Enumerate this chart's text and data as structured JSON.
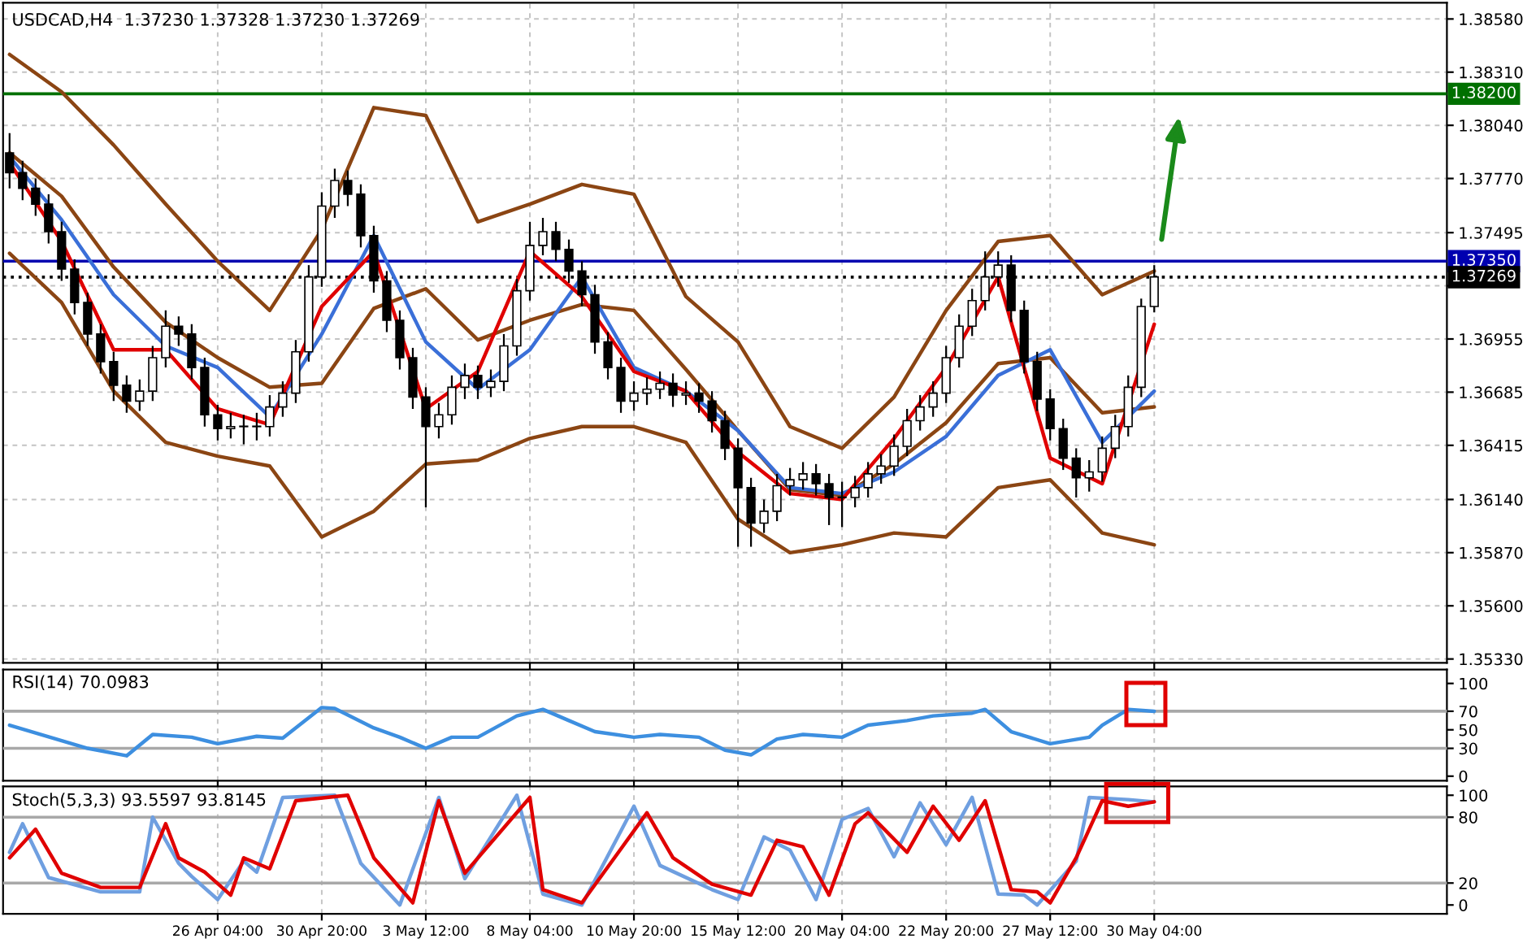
{
  "chart_data": [
    {
      "type": "candlestick",
      "title": "USDCAD,H4  1.37230 1.37328 1.37230 1.37269",
      "tick_labels": "y",
      "grid": true,
      "categories": [
        null,
        null,
        null,
        null,
        null,
        null,
        null,
        null,
        null,
        null,
        null,
        null,
        null,
        null,
        null,
        null,
        null,
        null,
        null,
        null,
        null,
        null,
        null,
        null,
        null,
        null,
        null,
        null,
        null,
        null,
        null,
        null,
        null,
        null,
        null,
        null,
        null,
        null,
        null,
        null,
        null,
        null,
        null,
        null,
        null,
        null,
        null,
        null,
        null,
        null,
        null,
        null,
        null,
        null,
        null,
        null,
        null,
        null,
        null,
        null,
        null,
        null,
        null,
        null,
        null,
        null,
        null,
        null,
        null,
        null,
        null,
        null,
        null,
        null,
        null,
        null,
        null,
        null,
        null,
        null,
        null,
        null,
        null,
        null,
        null,
        null,
        null,
        null,
        null,
        null,
        null,
        null,
        null,
        null,
        null,
        null,
        null,
        null,
        null,
        null,
        null,
        null,
        null,
        null,
        null,
        null,
        null,
        null,
        null,
        null,
        null
      ],
      "ohlc": [
        [
          1.379,
          1.38,
          1.3772,
          1.378
        ],
        [
          1.378,
          1.3786,
          1.3766,
          1.3772
        ],
        [
          1.3772,
          1.3777,
          1.3758,
          1.3764
        ],
        [
          1.3764,
          1.3769,
          1.3744,
          1.375
        ],
        [
          1.375,
          1.3755,
          1.3725,
          1.3731
        ],
        [
          1.3731,
          1.3736,
          1.3708,
          1.3714
        ],
        [
          1.3714,
          1.3719,
          1.3692,
          1.3698
        ],
        [
          1.3698,
          1.3703,
          1.3678,
          1.3684
        ],
        [
          1.3684,
          1.3689,
          1.3664,
          1.3672
        ],
        [
          1.3672,
          1.3677,
          1.3658,
          1.3664
        ],
        [
          1.3664,
          1.3675,
          1.3659,
          1.3669
        ],
        [
          1.3669,
          1.3692,
          1.3664,
          1.3686
        ],
        [
          1.3686,
          1.371,
          1.3681,
          1.3702
        ],
        [
          1.3702,
          1.3707,
          1.3692,
          1.3698
        ],
        [
          1.3698,
          1.3703,
          1.3675,
          1.3681
        ],
        [
          1.3681,
          1.3686,
          1.3651,
          1.3657
        ],
        [
          1.3657,
          1.3662,
          1.3644,
          1.365
        ],
        [
          1.365,
          1.3658,
          1.3645,
          1.3651
        ],
        [
          1.3651,
          1.3657,
          1.3642,
          1.3651
        ],
        [
          1.3651,
          1.3658,
          1.3644,
          1.3651
        ],
        [
          1.3651,
          1.3667,
          1.3646,
          1.3661
        ],
        [
          1.3661,
          1.3674,
          1.3656,
          1.3668
        ],
        [
          1.3668,
          1.3695,
          1.3663,
          1.3689
        ],
        [
          1.3689,
          1.3733,
          1.3684,
          1.3727
        ],
        [
          1.3727,
          1.377,
          1.3722,
          1.3763
        ],
        [
          1.3763,
          1.3782,
          1.3757,
          1.3776
        ],
        [
          1.3776,
          1.3781,
          1.3763,
          1.3769
        ],
        [
          1.3769,
          1.3774,
          1.3742,
          1.3748
        ],
        [
          1.3748,
          1.3753,
          1.3719,
          1.3725
        ],
        [
          1.3725,
          1.373,
          1.3699,
          1.3705
        ],
        [
          1.3705,
          1.371,
          1.368,
          1.3686
        ],
        [
          1.3686,
          1.3691,
          1.366,
          1.3666
        ],
        [
          1.3666,
          1.3671,
          1.361,
          1.3651
        ],
        [
          1.3651,
          1.3663,
          1.3645,
          1.3657
        ],
        [
          1.3657,
          1.3677,
          1.3652,
          1.3671
        ],
        [
          1.3671,
          1.3683,
          1.3665,
          1.3677
        ],
        [
          1.3677,
          1.3682,
          1.3665,
          1.3671
        ],
        [
          1.3671,
          1.368,
          1.3666,
          1.3674
        ],
        [
          1.3674,
          1.3698,
          1.3669,
          1.3692
        ],
        [
          1.3692,
          1.3726,
          1.3687,
          1.372
        ],
        [
          1.372,
          1.3755,
          1.3715,
          1.3743
        ],
        [
          1.3743,
          1.3757,
          1.3738,
          1.375
        ],
        [
          1.375,
          1.3755,
          1.3735,
          1.3741
        ],
        [
          1.3741,
          1.3746,
          1.3724,
          1.373
        ],
        [
          1.373,
          1.3735,
          1.3712,
          1.3718
        ],
        [
          1.3718,
          1.3723,
          1.3688,
          1.3694
        ],
        [
          1.3694,
          1.3699,
          1.3675,
          1.3681
        ],
        [
          1.3681,
          1.3686,
          1.3658,
          1.3664
        ],
        [
          1.3664,
          1.3674,
          1.3659,
          1.3668
        ],
        [
          1.3668,
          1.3676,
          1.3662,
          1.367
        ],
        [
          1.367,
          1.3679,
          1.3665,
          1.3673
        ],
        [
          1.3673,
          1.3678,
          1.3661,
          1.3667
        ],
        [
          1.3667,
          1.3674,
          1.3662,
          1.3668
        ],
        [
          1.3668,
          1.3673,
          1.3658,
          1.3664
        ],
        [
          1.3664,
          1.3669,
          1.3648,
          1.3654
        ],
        [
          1.3654,
          1.3659,
          1.3634,
          1.364
        ],
        [
          1.364,
          1.3645,
          1.359,
          1.362
        ],
        [
          1.362,
          1.3625,
          1.359,
          1.3602
        ],
        [
          1.3602,
          1.3614,
          1.3597,
          1.3608
        ],
        [
          1.3608,
          1.3627,
          1.3603,
          1.3621
        ],
        [
          1.3621,
          1.363,
          1.3616,
          1.3624
        ],
        [
          1.3624,
          1.3633,
          1.3619,
          1.3627
        ],
        [
          1.3627,
          1.3632,
          1.3616,
          1.3622
        ],
        [
          1.3622,
          1.3627,
          1.3601,
          1.3615
        ],
        [
          1.3615,
          1.3623,
          1.36,
          1.3615
        ],
        [
          1.3615,
          1.3626,
          1.361,
          1.362
        ],
        [
          1.362,
          1.3633,
          1.3615,
          1.3627
        ],
        [
          1.3627,
          1.3637,
          1.3622,
          1.3631
        ],
        [
          1.3631,
          1.3647,
          1.3626,
          1.3641
        ],
        [
          1.3641,
          1.366,
          1.3636,
          1.3654
        ],
        [
          1.3654,
          1.3667,
          1.3649,
          1.3661
        ],
        [
          1.3661,
          1.3674,
          1.3656,
          1.3668
        ],
        [
          1.3668,
          1.3692,
          1.3663,
          1.3686
        ],
        [
          1.3686,
          1.3708,
          1.3681,
          1.3702
        ],
        [
          1.3702,
          1.3721,
          1.3697,
          1.3715
        ],
        [
          1.3715,
          1.374,
          1.371,
          1.3727
        ],
        [
          1.3727,
          1.374,
          1.3722,
          1.3733
        ],
        [
          1.3733,
          1.3738,
          1.3704,
          1.371
        ],
        [
          1.371,
          1.3715,
          1.3678,
          1.3684
        ],
        [
          1.3684,
          1.3689,
          1.3659,
          1.3665
        ],
        [
          1.3665,
          1.367,
          1.3644,
          1.365
        ],
        [
          1.365,
          1.3655,
          1.3629,
          1.3635
        ],
        [
          1.3635,
          1.364,
          1.3615,
          1.3625
        ],
        [
          1.3625,
          1.3634,
          1.3618,
          1.3628
        ],
        [
          1.3628,
          1.3646,
          1.3623,
          1.364
        ],
        [
          1.364,
          1.3657,
          1.3635,
          1.3651
        ],
        [
          1.3651,
          1.3677,
          1.3646,
          1.3671
        ],
        [
          1.3671,
          1.3716,
          1.3666,
          1.3712
        ],
        [
          1.3712,
          1.3733,
          1.3709,
          1.3727
        ],
        null,
        null,
        null,
        null,
        null,
        null,
        null,
        null,
        null,
        null,
        null,
        null,
        null,
        null,
        null,
        null,
        null,
        null,
        null,
        null,
        null,
        null
      ],
      "series": [
        {
          "type": "line",
          "color": "#8b4513",
          "values": [
            1.384,
            null,
            null,
            null,
            1.3821,
            null,
            null,
            null,
            1.3794,
            null,
            null,
            null,
            1.3764,
            null,
            null,
            null,
            1.3735,
            null,
            null,
            null,
            1.371,
            null,
            null,
            null,
            1.3751,
            null,
            null,
            null,
            1.3813,
            null,
            null,
            null,
            1.3809,
            null,
            null,
            null,
            1.3755,
            null,
            null,
            null,
            1.3764,
            null,
            null,
            null,
            1.3774,
            null,
            null,
            null,
            1.3769,
            null,
            null,
            null,
            1.3717,
            null,
            null,
            null,
            1.3694,
            null,
            null,
            null,
            1.3651,
            null,
            null,
            null,
            1.364,
            null,
            null,
            null,
            1.3666,
            null,
            null,
            null,
            1.371,
            null,
            null,
            null,
            1.3745,
            null,
            null,
            null,
            1.3748,
            null,
            null,
            null,
            1.3718,
            null,
            null,
            null,
            1.373,
            null,
            null,
            null,
            null,
            null,
            null,
            null,
            null,
            null,
            null,
            null,
            null,
            null,
            null,
            null,
            null,
            null,
            null,
            null,
            null,
            null,
            null
          ]
        },
        {
          "type": "line",
          "color": "#8b4513",
          "values": [
            1.379,
            null,
            null,
            null,
            1.3768,
            null,
            null,
            null,
            1.3732,
            null,
            null,
            null,
            1.3704,
            null,
            null,
            null,
            1.3686,
            null,
            null,
            null,
            1.3671,
            null,
            null,
            null,
            1.3673,
            null,
            null,
            null,
            1.3711,
            null,
            null,
            null,
            1.3721,
            null,
            null,
            null,
            1.3695,
            null,
            null,
            null,
            1.3705,
            null,
            null,
            null,
            1.3713,
            null,
            null,
            null,
            1.371,
            null,
            null,
            null,
            1.368,
            null,
            null,
            null,
            1.3649,
            null,
            null,
            null,
            1.3619,
            null,
            null,
            null,
            1.3616,
            null,
            null,
            null,
            1.3632,
            null,
            null,
            null,
            1.3653,
            null,
            null,
            null,
            1.3683,
            null,
            null,
            null,
            1.3686,
            null,
            null,
            null,
            1.3658,
            null,
            null,
            null,
            1.3661,
            null,
            null,
            null,
            null,
            null,
            null,
            null,
            null,
            null,
            null,
            null,
            null,
            null,
            null,
            null,
            null,
            null,
            null,
            null,
            null,
            null,
            null
          ]
        },
        {
          "type": "line",
          "color": "#8b4513",
          "values": [
            1.3739,
            null,
            null,
            null,
            1.3714,
            null,
            null,
            null,
            1.3669,
            null,
            null,
            null,
            1.3643,
            null,
            null,
            null,
            1.3636,
            null,
            null,
            null,
            1.3631,
            null,
            null,
            null,
            1.3595,
            null,
            null,
            null,
            1.3608,
            null,
            null,
            null,
            1.3632,
            null,
            null,
            null,
            1.3634,
            null,
            null,
            null,
            1.3645,
            null,
            null,
            null,
            1.3651,
            null,
            null,
            null,
            1.3651,
            null,
            null,
            null,
            1.3643,
            null,
            null,
            null,
            1.3604,
            null,
            null,
            null,
            1.3587,
            null,
            null,
            null,
            1.3591,
            null,
            null,
            null,
            1.3597,
            null,
            null,
            null,
            1.3595,
            null,
            null,
            null,
            1.362,
            null,
            null,
            null,
            1.3624,
            null,
            null,
            null,
            1.3597,
            null,
            null,
            null,
            1.3591,
            null,
            null,
            null,
            null,
            null,
            null,
            null,
            null,
            null,
            null,
            null,
            null,
            null,
            null,
            null,
            null,
            null,
            null,
            null,
            null,
            null,
            null
          ]
        },
        {
          "type": "line",
          "color": "#3a6fd8",
          "values": [
            1.3788,
            null,
            null,
            null,
            1.3756,
            null,
            null,
            null,
            1.3718,
            null,
            null,
            null,
            1.3692,
            null,
            null,
            null,
            1.3681,
            null,
            null,
            null,
            1.3656,
            null,
            null,
            null,
            1.3698,
            null,
            null,
            null,
            1.3748,
            null,
            null,
            null,
            1.3694,
            null,
            null,
            null,
            1.367,
            null,
            null,
            null,
            1.369,
            null,
            null,
            null,
            1.3727,
            null,
            null,
            null,
            1.3681,
            null,
            null,
            null,
            1.3669,
            null,
            null,
            null,
            1.3649,
            null,
            null,
            null,
            1.362,
            null,
            null,
            null,
            1.3617,
            null,
            null,
            null,
            1.3628,
            null,
            null,
            null,
            1.3646,
            null,
            null,
            null,
            1.3677,
            null,
            null,
            null,
            1.369,
            null,
            null,
            null,
            1.3643,
            null,
            null,
            null,
            1.3669,
            null,
            null,
            null,
            null,
            null,
            null,
            null,
            null,
            null,
            null,
            null,
            null,
            null,
            null,
            null,
            null,
            null,
            null,
            null,
            null,
            null,
            null
          ]
        },
        {
          "type": "line",
          "color": "#e00000",
          "values": [
            1.3785,
            null,
            null,
            null,
            1.3745,
            null,
            null,
            null,
            1.369,
            null,
            null,
            null,
            1.369,
            null,
            null,
            null,
            1.366,
            null,
            null,
            null,
            1.3652,
            null,
            null,
            null,
            1.3712,
            null,
            null,
            null,
            1.374,
            null,
            null,
            null,
            1.366,
            null,
            null,
            null,
            1.3679,
            null,
            null,
            null,
            1.374,
            null,
            null,
            null,
            1.3717,
            null,
            null,
            null,
            1.3679,
            null,
            null,
            null,
            1.3669,
            null,
            null,
            null,
            1.3638,
            null,
            null,
            null,
            1.3617,
            null,
            null,
            null,
            1.3614,
            null,
            null,
            null,
            1.3645,
            null,
            null,
            null,
            1.3681,
            null,
            null,
            null,
            1.3727,
            null,
            null,
            null,
            1.3635,
            null,
            null,
            null,
            1.3622,
            null,
            null,
            null,
            1.3703,
            null,
            null,
            null,
            null,
            null,
            null,
            null,
            null,
            null,
            null,
            null,
            null,
            null,
            null,
            null,
            null,
            null,
            null,
            null,
            null,
            null,
            null
          ]
        }
      ],
      "ylim": [
        1.3531,
        1.38662
      ],
      "yticks": [
        {
          "value": 1.3533,
          "label": "1.35330"
        },
        {
          "value": 1.356,
          "label": "1.35600"
        },
        {
          "value": 1.3587,
          "label": "1.35870"
        },
        {
          "value": 1.3614,
          "label": "1.36140"
        },
        {
          "value": 1.36415,
          "label": "1.36415"
        },
        {
          "value": 1.36685,
          "label": "1.36685"
        },
        {
          "value": 1.36955,
          "label": "1.36955"
        },
        {
          "value": 1.37225,
          "label": null
        },
        {
          "value": 1.37495,
          "label": "1.37495"
        },
        {
          "value": 1.3777,
          "label": "1.37770"
        },
        {
          "value": 1.3804,
          "label": "1.38040"
        },
        {
          "value": 1.3831,
          "label": "1.38310"
        },
        {
          "value": 1.3858,
          "label": "1.38580"
        }
      ],
      "ref_lines": [
        {
          "axis": "y",
          "value": 1.382,
          "label": "1.38200",
          "color": "#007000"
        },
        {
          "axis": "y",
          "value": 1.3735,
          "label": "1.37350",
          "color": "#0000b0"
        },
        {
          "axis": "y",
          "value": 1.37269,
          "label": "1.37269",
          "color": "#000000",
          "line_style": "dotted"
        }
      ]
    },
    {
      "type": "line",
      "title": "RSI(14) 70.0983",
      "tick_labels": "y",
      "grid": "x",
      "categories": [
        null,
        null,
        null,
        null,
        null,
        null,
        null,
        null,
        null,
        null,
        null,
        null,
        null,
        null,
        null,
        null,
        null,
        null,
        null,
        null,
        null,
        null,
        null,
        null,
        null,
        null,
        null,
        null,
        null,
        null,
        null,
        null,
        null,
        null,
        null,
        null,
        null,
        null,
        null,
        null,
        null,
        null,
        null,
        null,
        null,
        null,
        null,
        null,
        null,
        null,
        null,
        null,
        null,
        null,
        null,
        null,
        null,
        null,
        null,
        null,
        null,
        null,
        null,
        null,
        null,
        null,
        null,
        null,
        null,
        null,
        null,
        null,
        null,
        null,
        null,
        null,
        null,
        null,
        null,
        null,
        null,
        null,
        null,
        null,
        null,
        null,
        null,
        null,
        null,
        null,
        null,
        null,
        null,
        null,
        null,
        null,
        null,
        null,
        null,
        null,
        null,
        null,
        null,
        null,
        null,
        null,
        null,
        null,
        null,
        null,
        null
      ],
      "ylim": [
        -5,
        115
      ],
      "yticks": [
        0,
        30,
        50,
        70,
        100
      ],
      "ref_lines": [
        {
          "axis": "y",
          "value": 30,
          "label": null,
          "color": "#a8a8a8"
        },
        {
          "axis": "y",
          "value": 70,
          "label": null,
          "color": "#a8a8a8"
        }
      ],
      "series": [
        {
          "color": "#3d8fe0",
          "values": [
            55,
            null,
            null,
            null,
            null,
            null,
            30,
            null,
            null,
            22,
            null,
            45,
            null,
            null,
            42,
            null,
            35,
            null,
            null,
            43,
            null,
            41,
            null,
            null,
            74,
            73,
            null,
            null,
            52,
            null,
            42,
            null,
            30,
            null,
            42,
            null,
            42,
            null,
            null,
            65,
            null,
            72,
            null,
            60,
            null,
            48,
            null,
            null,
            42,
            null,
            45,
            null,
            null,
            42,
            null,
            28,
            null,
            23,
            null,
            40,
            null,
            45,
            null,
            null,
            42,
            null,
            55,
            null,
            null,
            60,
            null,
            65,
            null,
            null,
            68,
            72,
            null,
            48,
            null,
            null,
            35,
            null,
            null,
            42,
            55,
            null,
            72,
            null,
            70,
            null,
            null,
            null,
            null,
            null,
            null,
            null,
            null,
            null,
            null,
            null,
            null,
            null,
            null,
            null,
            null,
            null,
            null,
            null,
            null,
            null,
            null
          ]
        }
      ]
    },
    {
      "type": "line",
      "title": "Stoch(5,3,3) 93.5597 93.8145",
      "grid": "x",
      "categories": [
        null,
        null,
        null,
        null,
        null,
        null,
        null,
        null,
        null,
        null,
        null,
        null,
        null,
        null,
        null,
        null,
        "26 Apr 04:00",
        null,
        null,
        null,
        null,
        null,
        null,
        null,
        "30 Apr 20:00",
        null,
        null,
        null,
        null,
        null,
        null,
        null,
        "3 May 12:00",
        null,
        null,
        null,
        null,
        null,
        null,
        null,
        "8 May 04:00",
        null,
        null,
        null,
        null,
        null,
        null,
        null,
        "10 May 20:00",
        null,
        null,
        null,
        null,
        null,
        null,
        null,
        "15 May 12:00",
        null,
        null,
        null,
        null,
        null,
        null,
        null,
        "20 May 04:00",
        null,
        null,
        null,
        null,
        null,
        null,
        null,
        "22 May 20:00",
        null,
        null,
        null,
        null,
        null,
        null,
        null,
        "27 May 12:00",
        null,
        null,
        null,
        null,
        null,
        null,
        null,
        "30 May 04:00",
        null,
        null,
        null,
        null,
        null,
        null,
        null,
        null,
        null,
        null,
        null,
        null,
        null,
        null,
        null,
        null,
        null,
        null,
        null,
        null,
        null,
        null
      ],
      "ylim": [
        -8,
        108
      ],
      "yticks": [
        0,
        20,
        80,
        100
      ],
      "ref_lines": [
        {
          "axis": "y",
          "value": 20,
          "label": null,
          "color": "#a8a8a8"
        },
        {
          "axis": "y",
          "value": 80,
          "label": null,
          "color": "#a8a8a8"
        }
      ],
      "series": [
        {
          "color": "#6f9fe0",
          "values": [
            48,
            74,
            null,
            25,
            null,
            null,
            null,
            12,
            null,
            null,
            12,
            80,
            null,
            38,
            26,
            null,
            5,
            null,
            40,
            30,
            null,
            98,
            null,
            null,
            null,
            100,
            null,
            38,
            null,
            null,
            0,
            null,
            null,
            98,
            null,
            24,
            null,
            null,
            null,
            100,
            null,
            10,
            null,
            null,
            0,
            null,
            null,
            null,
            90,
            null,
            36,
            null,
            null,
            null,
            14,
            null,
            5,
            null,
            62,
            null,
            50,
            null,
            5,
            null,
            78,
            null,
            88,
            null,
            44,
            null,
            93,
            null,
            55,
            null,
            98,
            null,
            10,
            null,
            9,
            0,
            null,
            null,
            40,
            98,
            null,
            null,
            96,
            null,
            94,
            null,
            null,
            null,
            null,
            null,
            null,
            null,
            null,
            null,
            null,
            null,
            null,
            null,
            null,
            null,
            null,
            null,
            null,
            null,
            null,
            null,
            null
          ]
        },
        {
          "color": "#e00000",
          "values": [
            43,
            null,
            69,
            null,
            29,
            null,
            null,
            16,
            null,
            null,
            16,
            null,
            74,
            43,
            null,
            30,
            null,
            9,
            43,
            null,
            33,
            null,
            95,
            null,
            null,
            null,
            100,
            null,
            43,
            null,
            null,
            2,
            null,
            95,
            null,
            29,
            null,
            null,
            null,
            null,
            98,
            14,
            null,
            null,
            2,
            null,
            null,
            null,
            null,
            84,
            null,
            43,
            null,
            null,
            19,
            null,
            null,
            9,
            null,
            59,
            null,
            53,
            null,
            9,
            null,
            74,
            84,
            null,
            null,
            48,
            null,
            90,
            null,
            59,
            null,
            95,
            null,
            14,
            null,
            12,
            2,
            null,
            43,
            null,
            95,
            null,
            90,
            null,
            94,
            null,
            null,
            null,
            null,
            null,
            null,
            null,
            null,
            null,
            null,
            null,
            null,
            null,
            null,
            null,
            null,
            null,
            null,
            null,
            null,
            null,
            null
          ]
        }
      ]
    }
  ]
}
